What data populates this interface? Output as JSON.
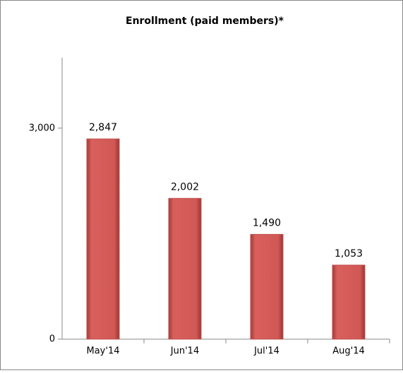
{
  "chart_data": {
    "type": "bar",
    "title": "Enrollment (paid members)*",
    "categories": [
      "May'14",
      "Jun'14",
      "Jul'14",
      "Aug'14"
    ],
    "values": [
      2847,
      2002,
      1490,
      1053
    ],
    "value_labels": [
      "2,847",
      "2,002",
      "1,490",
      "1,053"
    ],
    "color": "#c0504d",
    "ylim": [
      0,
      4000
    ],
    "yticks": [
      0,
      {
        "value": 3000,
        "label": "3,000"
      }
    ],
    "grid": false
  }
}
